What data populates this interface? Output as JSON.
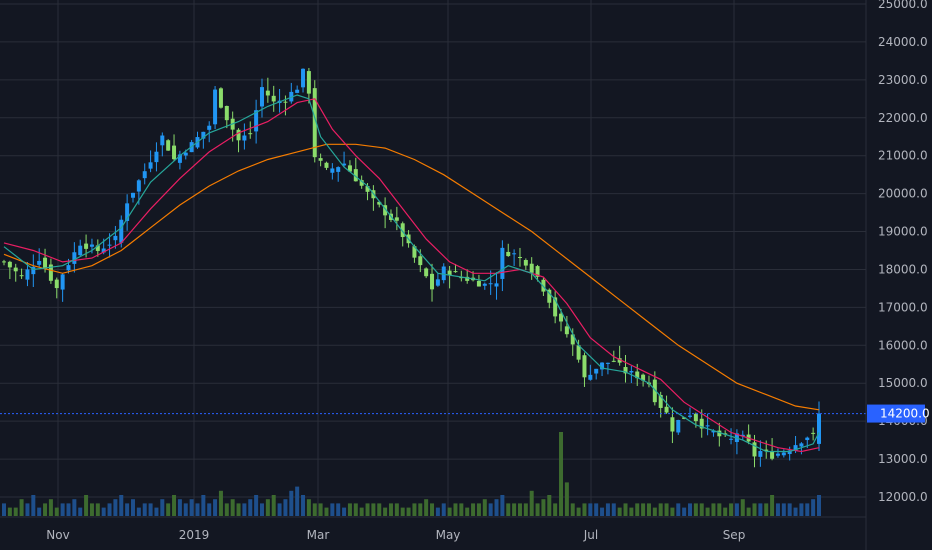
{
  "chart_data": {
    "type": "candlestick",
    "x_ticks": [
      "Nov",
      "2019",
      "Mar",
      "May",
      "Jul",
      "Sep"
    ],
    "y_ticks": [
      "12000.0",
      "13000.0",
      "14000.0",
      "15000.0",
      "16000.0",
      "17000.0",
      "18000.0",
      "19000.0",
      "20000.0",
      "21000.0",
      "22000.0",
      "23000.0",
      "24000.0",
      "25000.0"
    ],
    "y_range": [
      11500,
      25000
    ],
    "grid": true,
    "last_price": 14200,
    "last_price_label": "14200.0",
    "colors": {
      "background": "#131722",
      "grid": "#2a2e39",
      "up_candle": "#2196f3",
      "down_candle": "#8bdc6b",
      "ma_fast": "#26a69a",
      "ma_mid": "#e91e63",
      "ma_slow": "#f57c00",
      "price_line": "#2962ff",
      "volume_up": "#1e4f8c",
      "volume_down": "#3d6b2f"
    },
    "price_path": [
      [
        0,
        18200
      ],
      [
        3,
        17800
      ],
      [
        6,
        18300
      ],
      [
        9,
        17500
      ],
      [
        10,
        17900
      ],
      [
        13,
        18700
      ],
      [
        16,
        18500
      ],
      [
        19,
        18800
      ],
      [
        21,
        19800
      ],
      [
        24,
        20600
      ],
      [
        27,
        21500
      ],
      [
        29,
        20900
      ],
      [
        32,
        21300
      ],
      [
        35,
        21800
      ],
      [
        36,
        22700
      ],
      [
        38,
        22000
      ],
      [
        40,
        21400
      ],
      [
        42,
        21600
      ],
      [
        44,
        22800
      ],
      [
        46,
        22400
      ],
      [
        48,
        22500
      ],
      [
        50,
        22800
      ],
      [
        51,
        23200
      ],
      [
        52,
        22700
      ],
      [
        53,
        21000
      ],
      [
        55,
        20600
      ],
      [
        58,
        20800
      ],
      [
        60,
        20400
      ],
      [
        63,
        19800
      ],
      [
        67,
        19200
      ],
      [
        70,
        18300
      ],
      [
        72,
        17800
      ],
      [
        73,
        17500
      ],
      [
        75,
        18000
      ],
      [
        78,
        17800
      ],
      [
        80,
        17700
      ],
      [
        82,
        17600
      ],
      [
        84,
        17700
      ],
      [
        85,
        18500
      ],
      [
        87,
        18400
      ],
      [
        89,
        18200
      ],
      [
        91,
        17800
      ],
      [
        93,
        17200
      ],
      [
        94,
        16800
      ],
      [
        96,
        16300
      ],
      [
        98,
        15700
      ],
      [
        99,
        15100
      ],
      [
        100,
        15300
      ],
      [
        102,
        15500
      ],
      [
        104,
        15600
      ],
      [
        106,
        15300
      ],
      [
        108,
        15200
      ],
      [
        110,
        15000
      ],
      [
        111,
        14600
      ],
      [
        113,
        14200
      ],
      [
        114,
        13800
      ],
      [
        115,
        14000
      ],
      [
        117,
        14200
      ],
      [
        119,
        13900
      ],
      [
        120,
        13800
      ],
      [
        122,
        13600
      ],
      [
        124,
        13500
      ],
      [
        125,
        13700
      ],
      [
        127,
        13400
      ],
      [
        128,
        13100
      ],
      [
        129,
        13200
      ],
      [
        131,
        13100
      ],
      [
        133,
        13200
      ],
      [
        135,
        13400
      ],
      [
        137,
        13600
      ],
      [
        138,
        13600
      ],
      [
        139,
        14200
      ]
    ],
    "volume": [
      3,
      2,
      2,
      4,
      3,
      5,
      2,
      3,
      4,
      2,
      3,
      3,
      4,
      2,
      5,
      3,
      3,
      2,
      3,
      4,
      5,
      3,
      4,
      2,
      3,
      3,
      2,
      4,
      3,
      5,
      4,
      3,
      4,
      3,
      5,
      3,
      4,
      6,
      3,
      4,
      3,
      3,
      4,
      5,
      3,
      4,
      5,
      3,
      4,
      6,
      7,
      5,
      4,
      3,
      3,
      2,
      3,
      3,
      2,
      3,
      3,
      2,
      3,
      3,
      3,
      2,
      3,
      3,
      2,
      2,
      3,
      3,
      4,
      3,
      2,
      3,
      2,
      3,
      3,
      2,
      3,
      3,
      4,
      3,
      4,
      5,
      3,
      3,
      3,
      3,
      6,
      3,
      4,
      5,
      3,
      20,
      8,
      3,
      2,
      3,
      3,
      3,
      2,
      3,
      3,
      2,
      3,
      2,
      3,
      3,
      3,
      2,
      3,
      3,
      2,
      3,
      2,
      3,
      3,
      3,
      2,
      3,
      3,
      2,
      3,
      3,
      4,
      2,
      3,
      3,
      3,
      5,
      3,
      3,
      3,
      2,
      3,
      3,
      4,
      5
    ],
    "ma_fast": [
      [
        0,
        18600
      ],
      [
        5,
        18000
      ],
      [
        10,
        18100
      ],
      [
        15,
        18500
      ],
      [
        20,
        19100
      ],
      [
        25,
        20300
      ],
      [
        30,
        21000
      ],
      [
        35,
        21600
      ],
      [
        40,
        21900
      ],
      [
        45,
        22300
      ],
      [
        50,
        22600
      ],
      [
        52,
        22500
      ],
      [
        54,
        21500
      ],
      [
        58,
        20700
      ],
      [
        62,
        20200
      ],
      [
        66,
        19400
      ],
      [
        70,
        18600
      ],
      [
        74,
        17900
      ],
      [
        78,
        17800
      ],
      [
        82,
        17700
      ],
      [
        86,
        18100
      ],
      [
        90,
        17900
      ],
      [
        94,
        17200
      ],
      [
        98,
        16000
      ],
      [
        102,
        15400
      ],
      [
        106,
        15300
      ],
      [
        110,
        15000
      ],
      [
        114,
        14300
      ],
      [
        118,
        13900
      ],
      [
        122,
        13700
      ],
      [
        126,
        13500
      ],
      [
        130,
        13200
      ],
      [
        134,
        13200
      ],
      [
        138,
        13400
      ],
      [
        139,
        13700
      ]
    ],
    "ma_mid": [
      [
        0,
        18700
      ],
      [
        5,
        18500
      ],
      [
        10,
        18200
      ],
      [
        15,
        18300
      ],
      [
        20,
        18700
      ],
      [
        25,
        19600
      ],
      [
        30,
        20400
      ],
      [
        35,
        21100
      ],
      [
        40,
        21600
      ],
      [
        45,
        21900
      ],
      [
        50,
        22400
      ],
      [
        53,
        22500
      ],
      [
        56,
        21700
      ],
      [
        60,
        21000
      ],
      [
        64,
        20400
      ],
      [
        68,
        19600
      ],
      [
        72,
        18800
      ],
      [
        76,
        18200
      ],
      [
        80,
        17900
      ],
      [
        84,
        17900
      ],
      [
        88,
        18000
      ],
      [
        92,
        17800
      ],
      [
        96,
        17100
      ],
      [
        100,
        16200
      ],
      [
        104,
        15700
      ],
      [
        108,
        15400
      ],
      [
        112,
        15100
      ],
      [
        116,
        14500
      ],
      [
        120,
        14100
      ],
      [
        124,
        13700
      ],
      [
        128,
        13500
      ],
      [
        132,
        13300
      ],
      [
        136,
        13200
      ],
      [
        139,
        13300
      ]
    ],
    "ma_slow": [
      [
        0,
        18400
      ],
      [
        5,
        18100
      ],
      [
        10,
        17900
      ],
      [
        15,
        18100
      ],
      [
        20,
        18500
      ],
      [
        25,
        19100
      ],
      [
        30,
        19700
      ],
      [
        35,
        20200
      ],
      [
        40,
        20600
      ],
      [
        45,
        20900
      ],
      [
        50,
        21100
      ],
      [
        55,
        21300
      ],
      [
        60,
        21300
      ],
      [
        65,
        21200
      ],
      [
        70,
        20900
      ],
      [
        75,
        20500
      ],
      [
        80,
        20000
      ],
      [
        85,
        19500
      ],
      [
        90,
        19000
      ],
      [
        95,
        18400
      ],
      [
        100,
        17800
      ],
      [
        105,
        17200
      ],
      [
        110,
        16600
      ],
      [
        115,
        16000
      ],
      [
        120,
        15500
      ],
      [
        125,
        15000
      ],
      [
        130,
        14700
      ],
      [
        135,
        14400
      ],
      [
        139,
        14300
      ]
    ]
  }
}
